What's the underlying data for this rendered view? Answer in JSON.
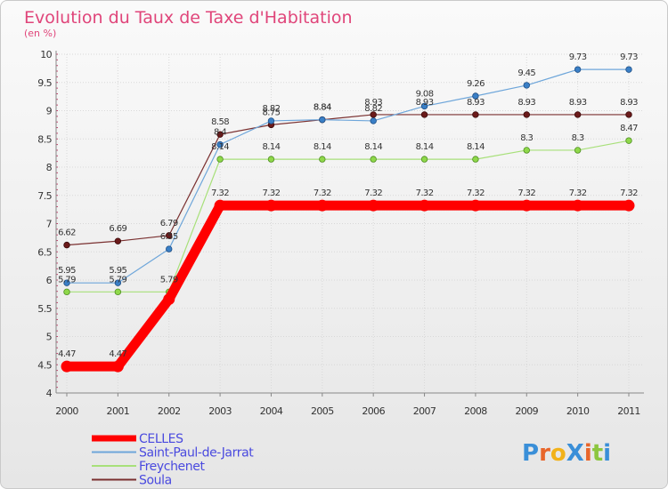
{
  "chart_data": {
    "type": "line",
    "title": "Evolution du Taux de Taxe d'Habitation",
    "subtitle": "(en %)",
    "x": [
      "2000",
      "2001",
      "2002",
      "2003",
      "2004",
      "2005",
      "2006",
      "2007",
      "2008",
      "2009",
      "2010",
      "2011"
    ],
    "ylim": [
      4,
      10
    ],
    "yticks": [
      "4",
      "4.5",
      "5",
      "5.5",
      "6",
      "6.5",
      "7",
      "7.5",
      "8",
      "8.5",
      "9",
      "9.5",
      "10"
    ],
    "grid": true,
    "legend": "bottom-left",
    "series": [
      {
        "name": "CELLES",
        "color": "#ff0000",
        "labels": [
          "4.47",
          "4.47",
          "",
          "7.32",
          "7.32",
          "7.32",
          "7.32",
          "7.32",
          "7.32",
          "7.32",
          "7.32",
          "7.32"
        ],
        "values": [
          4.47,
          4.47,
          5.66,
          7.32,
          7.32,
          7.32,
          7.32,
          7.32,
          7.32,
          7.32,
          7.32,
          7.32
        ]
      },
      {
        "name": "Saint-Paul-de-Jarrat",
        "color": "#3a7fc6",
        "labels": [
          "5.95",
          "5.95",
          "6.55",
          "8.4",
          "8.82",
          "8.84",
          "8.82",
          "9.08",
          "9.26",
          "9.45",
          "9.73",
          "9.73"
        ],
        "values": [
          5.95,
          5.95,
          6.55,
          8.4,
          8.82,
          8.84,
          8.82,
          9.08,
          9.26,
          9.45,
          9.73,
          9.73
        ]
      },
      {
        "name": "Freychenet",
        "color": "#8fd84a",
        "labels": [
          "5.79",
          "5.79",
          "5.79",
          "8.14",
          "8.14",
          "8.14",
          "8.14",
          "8.14",
          "8.14",
          "8.3",
          "8.3",
          "8.47"
        ],
        "values": [
          5.79,
          5.79,
          5.79,
          8.14,
          8.14,
          8.14,
          8.14,
          8.14,
          8.14,
          8.3,
          8.3,
          8.47
        ]
      },
      {
        "name": "Soula",
        "color": "#6b1a1a",
        "labels": [
          "6.62",
          "6.69",
          "6.79",
          "8.58",
          "8.75",
          "8.84",
          "8.93",
          "8.93",
          "8.93",
          "8.93",
          "8.93",
          "8.93"
        ],
        "values": [
          6.62,
          6.69,
          6.79,
          8.58,
          8.75,
          8.84,
          8.93,
          8.93,
          8.93,
          8.93,
          8.93,
          8.93
        ]
      }
    ]
  },
  "logo": {
    "text": "ProXiti",
    "letters": [
      "P",
      "r",
      "o",
      "X",
      "i",
      "t",
      "i"
    ],
    "colors": [
      "#3a8fd8",
      "#e8652a",
      "#f2b21a",
      "#3a8fd8",
      "#e8652a",
      "#8cc63f",
      "#3a8fd8"
    ]
  }
}
